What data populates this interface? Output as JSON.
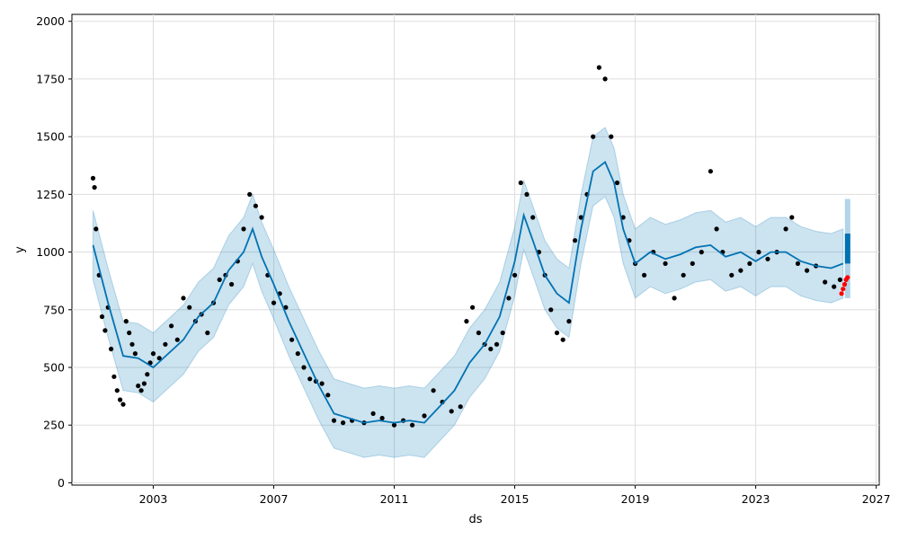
{
  "chart_data": {
    "type": "line",
    "title": "",
    "xlabel": "ds",
    "ylabel": "y",
    "x_axis_type": "date-years",
    "xlim": [
      2000.3,
      2027.1
    ],
    "ylim": [
      -10,
      2030
    ],
    "grid": true,
    "legend": "none",
    "x_ticks": [
      2003,
      2007,
      2011,
      2015,
      2019,
      2023,
      2027
    ],
    "x_tick_labels": [
      "2003",
      "2007",
      "2011",
      "2015",
      "2019",
      "2023",
      "2027"
    ],
    "y_ticks": [
      0,
      250,
      500,
      750,
      1000,
      1250,
      1500,
      1750,
      2000
    ],
    "y_tick_labels": [
      "0",
      "250",
      "500",
      "750",
      "1000",
      "1250",
      "1500",
      "1750",
      "2000"
    ],
    "colors": {
      "observed": "#000000",
      "forecast_line": "#0072B2",
      "uncertainty_band": "#0072B2",
      "future_forecast": "#0072B2",
      "highlight_points": "#ff0000",
      "grid": "#dddddd"
    },
    "observed": {
      "x": [
        2001.0,
        2001.05,
        2001.1,
        2001.2,
        2001.3,
        2001.4,
        2001.5,
        2001.6,
        2001.7,
        2001.8,
        2001.9,
        2002.0,
        2002.1,
        2002.2,
        2002.3,
        2002.4,
        2002.5,
        2002.6,
        2002.7,
        2002.8,
        2002.9,
        2003.0,
        2003.2,
        2003.4,
        2003.6,
        2003.8,
        2004.0,
        2004.2,
        2004.4,
        2004.6,
        2004.8,
        2005.0,
        2005.2,
        2005.4,
        2005.6,
        2005.8,
        2006.0,
        2006.2,
        2006.4,
        2006.6,
        2006.8,
        2007.0,
        2007.2,
        2007.4,
        2007.6,
        2007.8,
        2008.0,
        2008.2,
        2008.4,
        2008.6,
        2008.8,
        2009.0,
        2009.3,
        2009.6,
        2010.0,
        2010.3,
        2010.6,
        2011.0,
        2011.3,
        2011.6,
        2012.0,
        2012.3,
        2012.6,
        2012.9,
        2013.2,
        2013.4,
        2013.6,
        2013.8,
        2014.0,
        2014.2,
        2014.4,
        2014.6,
        2014.8,
        2015.0,
        2015.2,
        2015.4,
        2015.6,
        2015.8,
        2016.0,
        2016.2,
        2016.4,
        2016.6,
        2016.8,
        2017.0,
        2017.2,
        2017.4,
        2017.6,
        2017.8,
        2018.0,
        2018.2,
        2018.4,
        2018.6,
        2018.8,
        2019.0,
        2019.3,
        2019.6,
        2020.0,
        2020.3,
        2020.6,
        2020.9,
        2021.2,
        2021.5,
        2021.7,
        2021.9,
        2022.2,
        2022.5,
        2022.8,
        2023.1,
        2023.4,
        2023.7,
        2024.0,
        2024.2,
        2024.4,
        2024.7,
        2025.0,
        2025.3,
        2025.6,
        2025.8
      ],
      "y": [
        1320,
        1280,
        1100,
        900,
        720,
        660,
        760,
        580,
        460,
        400,
        360,
        340,
        700,
        650,
        600,
        560,
        420,
        400,
        430,
        470,
        520,
        560,
        540,
        600,
        680,
        620,
        800,
        760,
        700,
        730,
        650,
        780,
        880,
        900,
        860,
        960,
        1100,
        1250,
        1200,
        1150,
        900,
        780,
        820,
        760,
        620,
        560,
        500,
        450,
        440,
        430,
        380,
        270,
        260,
        270,
        260,
        300,
        280,
        250,
        270,
        250,
        290,
        400,
        350,
        310,
        330,
        700,
        760,
        650,
        600,
        580,
        600,
        650,
        800,
        900,
        1300,
        1250,
        1150,
        1000,
        900,
        750,
        650,
        620,
        700,
        1050,
        1150,
        1250,
        1500,
        1800,
        1750,
        1500,
        1300,
        1150,
        1050,
        950,
        900,
        1000,
        950,
        800,
        900,
        950,
        1000,
        1350,
        1100,
        1000,
        900,
        920,
        950,
        1000,
        970,
        1000,
        1100,
        1150,
        950,
        920,
        940,
        870,
        850,
        880
      ]
    },
    "trend": {
      "x": [
        2001.0,
        2001.5,
        2002.0,
        2002.5,
        2003.0,
        2003.5,
        2004.0,
        2004.5,
        2005.0,
        2005.5,
        2006.0,
        2006.3,
        2006.6,
        2007.0,
        2007.5,
        2008.0,
        2008.5,
        2009.0,
        2009.5,
        2010.0,
        2010.5,
        2011.0,
        2011.5,
        2012.0,
        2012.5,
        2013.0,
        2013.5,
        2014.0,
        2014.5,
        2015.0,
        2015.3,
        2015.6,
        2016.0,
        2016.4,
        2016.8,
        2017.2,
        2017.6,
        2018.0,
        2018.3,
        2018.6,
        2019.0,
        2019.5,
        2020.0,
        2020.5,
        2021.0,
        2021.5,
        2022.0,
        2022.5,
        2023.0,
        2023.5,
        2024.0,
        2024.5,
        2025.0,
        2025.5,
        2025.9
      ],
      "yhat": [
        1030,
        780,
        550,
        540,
        500,
        560,
        620,
        720,
        780,
        920,
        1000,
        1100,
        980,
        860,
        700,
        560,
        420,
        300,
        280,
        260,
        270,
        260,
        270,
        260,
        330,
        400,
        520,
        600,
        720,
        960,
        1160,
        1050,
        900,
        820,
        780,
        1100,
        1350,
        1390,
        1300,
        1100,
        950,
        1000,
        970,
        990,
        1020,
        1030,
        980,
        1000,
        960,
        1000,
        1000,
        960,
        940,
        930,
        950
      ],
      "yhat_lower": [
        880,
        630,
        400,
        390,
        350,
        410,
        470,
        570,
        630,
        770,
        850,
        950,
        830,
        710,
        550,
        410,
        270,
        150,
        130,
        110,
        120,
        110,
        120,
        110,
        180,
        250,
        370,
        450,
        570,
        810,
        1010,
        900,
        750,
        670,
        630,
        950,
        1200,
        1240,
        1150,
        950,
        800,
        850,
        820,
        840,
        870,
        880,
        830,
        850,
        810,
        850,
        850,
        810,
        790,
        780,
        800
      ],
      "yhat_upper": [
        1180,
        930,
        700,
        690,
        650,
        710,
        770,
        870,
        930,
        1070,
        1150,
        1250,
        1130,
        1010,
        850,
        710,
        570,
        450,
        430,
        410,
        420,
        410,
        420,
        410,
        480,
        550,
        670,
        750,
        870,
        1110,
        1310,
        1200,
        1050,
        970,
        930,
        1250,
        1500,
        1540,
        1450,
        1250,
        1100,
        1150,
        1120,
        1140,
        1170,
        1180,
        1130,
        1150,
        1110,
        1150,
        1150,
        1110,
        1090,
        1080,
        1100
      ]
    },
    "forecast_future": {
      "x": 2026.05,
      "yhat_range": [
        950,
        1080
      ],
      "band_range": [
        800,
        1230
      ]
    },
    "highlight": {
      "x": [
        2025.85,
        2025.9,
        2025.95,
        2026.0,
        2026.05
      ],
      "y": [
        820,
        840,
        860,
        880,
        890
      ]
    }
  }
}
